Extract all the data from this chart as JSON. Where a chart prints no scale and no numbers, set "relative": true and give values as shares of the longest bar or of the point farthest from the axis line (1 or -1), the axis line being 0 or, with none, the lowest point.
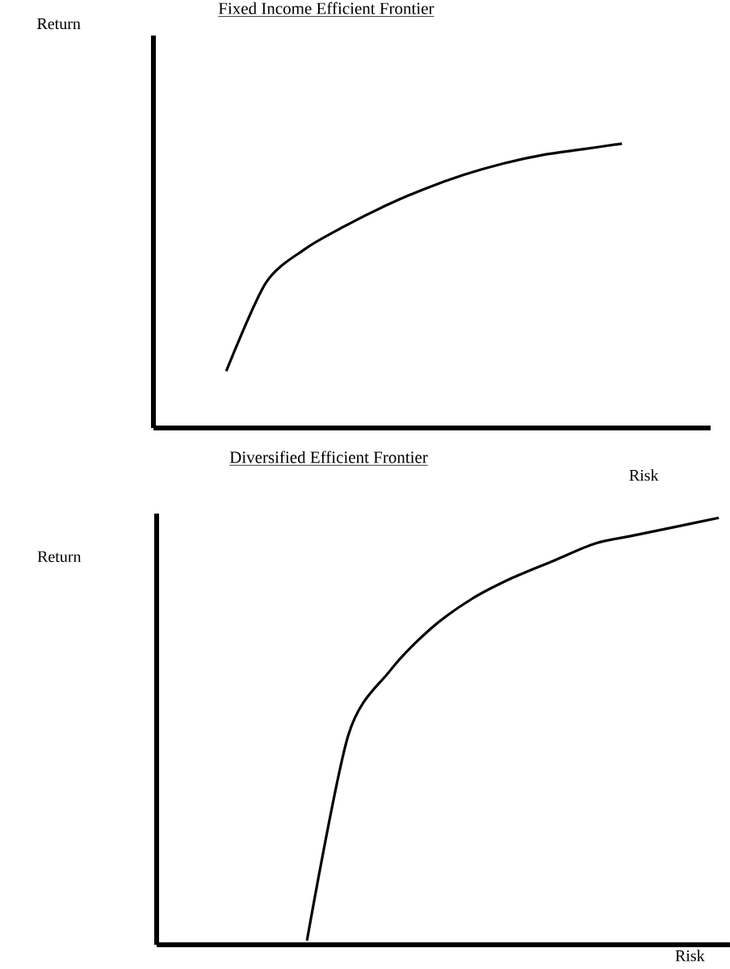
{
  "chart_data": [
    {
      "type": "line",
      "title": "Fixed Income Efficient Frontier",
      "xlabel": "Risk",
      "ylabel": "Return",
      "relative": true,
      "color": "#000000",
      "categories": [
        null,
        null,
        null,
        null,
        null,
        null,
        null,
        null,
        null,
        null,
        null
      ],
      "values": [
        0.2,
        0.51,
        0.63,
        0.71,
        0.78,
        0.84,
        0.89,
        0.93,
        0.96,
        0.98,
        1.0
      ]
    },
    {
      "type": "line",
      "title": "Diversified Efficient Frontier",
      "xlabel": "Risk",
      "ylabel": "Return",
      "relative": true,
      "color": "#000000",
      "categories": [
        null,
        null,
        null,
        null,
        null,
        null,
        null,
        null,
        null,
        null,
        null
      ],
      "values": [
        0.01,
        0.49,
        0.64,
        0.74,
        0.81,
        0.86,
        0.9,
        0.94,
        0.96,
        0.98,
        1.0
      ]
    }
  ]
}
